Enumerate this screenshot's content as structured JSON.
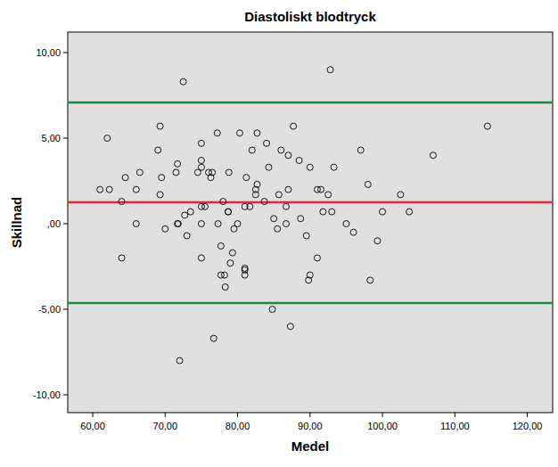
{
  "chart_data": {
    "type": "scatter",
    "title": "Diastoliskt blodtryck",
    "x_label": "Medel",
    "y_label": "Skillnad",
    "xlim": [
      56.55,
      123.5
    ],
    "ylim": [
      -11.04,
      11.2
    ],
    "xticks": [
      {
        "value": 60,
        "label": "60,00"
      },
      {
        "value": 70,
        "label": "70,00"
      },
      {
        "value": 80,
        "label": "80,00"
      },
      {
        "value": 90,
        "label": "90,00"
      },
      {
        "value": 100,
        "label": "100,00"
      },
      {
        "value": 110,
        "label": "110,00"
      },
      {
        "value": 120,
        "label": "120,00"
      }
    ],
    "yticks": [
      {
        "value": -10,
        "label": "-10,00"
      },
      {
        "value": -5,
        "label": "-5,00"
      },
      {
        "value": 0,
        "label": ",00"
      },
      {
        "value": 5,
        "label": "5,00"
      },
      {
        "value": 10,
        "label": "10,00"
      }
    ],
    "grid": false,
    "series": [
      {
        "color": "#000000",
        "marker": "open-circle",
        "x": [
          61,
          62,
          62.3,
          64,
          64,
          64.5,
          66,
          66,
          66.5,
          69,
          69.3,
          69.3,
          69.5,
          70,
          71.5,
          71.7,
          71.7,
          71.8,
          72,
          72.5,
          72.7,
          73,
          73.5,
          74.5,
          75,
          75,
          75,
          75,
          75,
          75,
          75.5,
          76,
          76.3,
          76.5,
          76.7,
          77.2,
          77.3,
          77.7,
          77.7,
          78,
          78.2,
          78.3,
          78.7,
          78.7,
          78.8,
          79,
          79.3,
          79.5,
          80,
          80.3,
          81,
          81,
          81,
          81,
          81.2,
          81.7,
          82,
          82.5,
          82.5,
          82.7,
          82.7,
          83.7,
          84,
          84.3,
          84.8,
          85,
          85.5,
          85.7,
          86,
          86.7,
          86.7,
          87,
          87,
          87.3,
          87.7,
          88.5,
          88.7,
          89.5,
          90,
          90,
          89.8,
          91,
          91,
          91.5,
          91.8,
          92.5,
          92.8,
          93,
          93.3,
          95,
          96,
          97,
          98,
          98.3,
          99.3,
          100,
          102.5,
          103.7,
          107,
          114.5
        ],
        "values": [
          2.0,
          5.0,
          2.0,
          1.3,
          -2.0,
          2.7,
          2.0,
          0.0,
          3.0,
          4.3,
          5.7,
          1.7,
          2.7,
          -0.3,
          3.0,
          3.5,
          0.0,
          0.0,
          -8.0,
          8.3,
          0.5,
          -0.7,
          0.7,
          3.0,
          4.7,
          3.3,
          3.7,
          1.0,
          0.0,
          -2.0,
          1.0,
          3.0,
          2.7,
          3.0,
          -6.7,
          5.3,
          0.0,
          -1.3,
          -3.0,
          1.3,
          -3.0,
          -3.7,
          0.7,
          0.7,
          3.0,
          -2.3,
          -1.7,
          -0.3,
          0.0,
          5.3,
          -2.7,
          -3.0,
          -2.6,
          1.0,
          2.7,
          1.0,
          4.3,
          1.7,
          2.0,
          5.3,
          2.3,
          1.3,
          4.7,
          3.3,
          -5.0,
          0.3,
          -0.3,
          1.7,
          4.3,
          0.0,
          1.0,
          4.0,
          2.0,
          -6.0,
          5.7,
          3.7,
          0.3,
          -0.7,
          3.3,
          -3.0,
          -3.3,
          2.0,
          -2.0,
          2.0,
          0.7,
          1.7,
          9.0,
          0.7,
          3.3,
          0.0,
          -0.5,
          4.3,
          2.3,
          -3.3,
          -1.0,
          0.7,
          1.7,
          0.7,
          4.0,
          5.7
        ]
      }
    ],
    "reference_lines": [
      {
        "value": 7.08,
        "color": "#1f8a3c"
      },
      {
        "value": 1.25,
        "color": "#e8282a"
      },
      {
        "value": -4.64,
        "color": "#1f8a3c"
      }
    ]
  }
}
